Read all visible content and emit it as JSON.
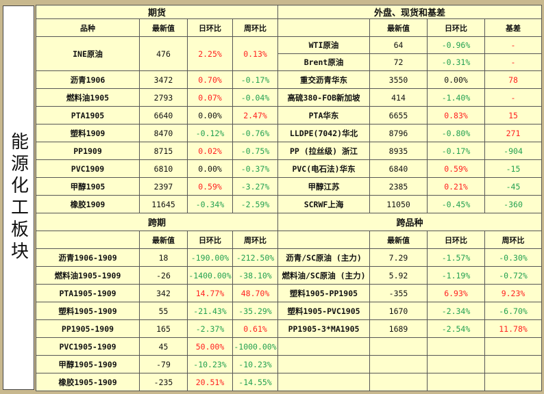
{
  "side_title": "能源化工板块",
  "futures": {
    "title": "期货",
    "headers": [
      "品种",
      "最新值",
      "日环比",
      "周环比"
    ],
    "rows": [
      {
        "name": "INE原油",
        "latest": "476",
        "dod": "2.25%",
        "wow": "0.13%"
      },
      {
        "name": "沥青1906",
        "latest": "3472",
        "dod": "0.70%",
        "wow": "-0.17%"
      },
      {
        "name": "燃料油1905",
        "latest": "2793",
        "dod": "0.07%",
        "wow": "-0.04%"
      },
      {
        "name": "PTA1905",
        "latest": "6640",
        "dod": "0.00%",
        "wow": "2.47%"
      },
      {
        "name": "塑料1909",
        "latest": "8470",
        "dod": "-0.12%",
        "wow": "-0.76%"
      },
      {
        "name": "PP1909",
        "latest": "8715",
        "dod": "0.02%",
        "wow": "-0.75%"
      },
      {
        "name": "PVC1909",
        "latest": "6810",
        "dod": "0.00%",
        "wow": "-0.37%"
      },
      {
        "name": "甲醇1905",
        "latest": "2397",
        "dod": "0.59%",
        "wow": "-3.27%"
      },
      {
        "name": "橡胶1909",
        "latest": "11645",
        "dod": "-0.34%",
        "wow": "-2.59%"
      }
    ]
  },
  "spot": {
    "title": "外盘、现货和基差",
    "headers": [
      "",
      "最新值",
      "日环比",
      "基差"
    ],
    "rows": [
      {
        "name": "WTI原油",
        "latest": "64",
        "dod": "-0.96%",
        "basis": "-"
      },
      {
        "name": "Brent原油",
        "latest": "72",
        "dod": "-0.31%",
        "basis": "-"
      },
      {
        "name": "重交沥青华东",
        "latest": "3550",
        "dod": "0.00%",
        "basis": "78"
      },
      {
        "name": "高硫380-FOB新加坡",
        "latest": "414",
        "dod": "-1.40%",
        "basis": "-"
      },
      {
        "name": "PTA华东",
        "latest": "6655",
        "dod": "0.83%",
        "basis": "15"
      },
      {
        "name": "LLDPE(7042)华北",
        "latest": "8796",
        "dod": "-0.80%",
        "basis": "271"
      },
      {
        "name": "PP (拉丝级) 浙江",
        "latest": "8935",
        "dod": "-0.17%",
        "basis": "-904"
      },
      {
        "name": "PVC(电石法)华东",
        "latest": "6840",
        "dod": "0.59%",
        "basis": "-15"
      },
      {
        "name": "甲醇江苏",
        "latest": "2385",
        "dod": "0.21%",
        "basis": "-45"
      },
      {
        "name": "SCRWF上海",
        "latest": "11050",
        "dod": "-0.45%",
        "basis": "-360"
      }
    ]
  },
  "calendar": {
    "title": "跨期",
    "headers": [
      "",
      "最新值",
      "日环比",
      "周环比"
    ],
    "rows": [
      {
        "name": "沥青1906-1909",
        "latest": "18",
        "dod": "-190.00%",
        "wow": "-212.50%"
      },
      {
        "name": "燃料油1905-1909",
        "latest": "-26",
        "dod": "-1400.00%",
        "wow": "-38.10%"
      },
      {
        "name": "PTA1905-1909",
        "latest": "342",
        "dod": "14.77%",
        "wow": "48.70%"
      },
      {
        "name": "塑料1905-1909",
        "latest": "55",
        "dod": "-21.43%",
        "wow": "-35.29%"
      },
      {
        "name": "PP1905-1909",
        "latest": "165",
        "dod": "-2.37%",
        "wow": "0.61%"
      },
      {
        "name": "PVC1905-1909",
        "latest": "45",
        "dod": "50.00%",
        "wow": "-1000.00%"
      },
      {
        "name": "甲醇1905-1909",
        "latest": "-79",
        "dod": "-10.23%",
        "wow": "-10.23%"
      },
      {
        "name": "橡胶1905-1909",
        "latest": "-235",
        "dod": "20.51%",
        "wow": "-14.55%"
      }
    ]
  },
  "cross": {
    "title": "跨品种",
    "headers": [
      "",
      "最新值",
      "日环比",
      "周环比"
    ],
    "rows": [
      {
        "name": "沥青/SC原油 (主力)",
        "latest": "7.29",
        "dod": "-1.57%",
        "wow": "-0.30%"
      },
      {
        "name": "燃料油/SC原油 (主力)",
        "latest": "5.92",
        "dod": "-1.19%",
        "wow": "-0.72%"
      },
      {
        "name": "塑料1905-PP1905",
        "latest": "-355",
        "dod": "6.93%",
        "wow": "9.23%"
      },
      {
        "name": "塑料1905-PVC1905",
        "latest": "1670",
        "dod": "-2.34%",
        "wow": "-6.70%"
      },
      {
        "name": "PP1905-3*MA1905",
        "latest": "1689",
        "dod": "-2.54%",
        "wow": "11.78%"
      }
    ]
  },
  "colors": {
    "positive": "#ff2020",
    "negative": "#22a050",
    "neutral": "#111111",
    "header_bg": "#f6b76a",
    "cell_bg": "#ffffcc"
  }
}
